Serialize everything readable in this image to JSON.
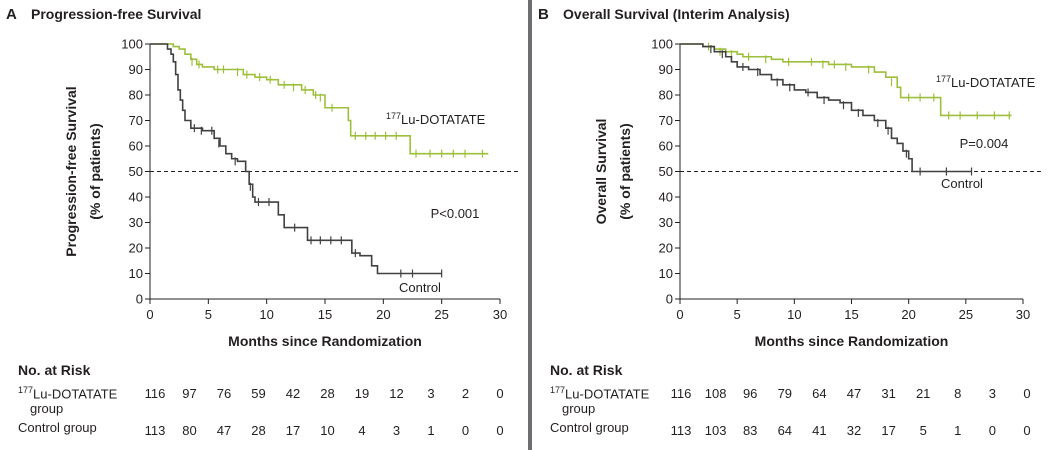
{
  "chart_data": [
    {
      "type": "line",
      "panel_letter": "A",
      "title": "Progression-free Survival",
      "ylabel_line1": "Progression-free Survival",
      "ylabel_line2": "(% of patients)",
      "xlabel": "Months since Randomization",
      "xlim": [
        0,
        30
      ],
      "ylim": [
        0,
        100
      ],
      "xticks": [
        0,
        5,
        10,
        15,
        20,
        25,
        30
      ],
      "yticks": [
        0,
        10,
        20,
        30,
        40,
        50,
        60,
        70,
        80,
        90,
        100
      ],
      "reference_line_y": 50,
      "pvalue": "P<0.001",
      "colors": {
        "treatment": "#9dbf3b",
        "control": "#414042",
        "reference": "#231f20"
      },
      "series": [
        {
          "name_sup": "177",
          "name": "Lu-DOTATATE",
          "points": [
            [
              0,
              100
            ],
            [
              1.8,
              100
            ],
            [
              2,
              99
            ],
            [
              2.5,
              98
            ],
            [
              3,
              96
            ],
            [
              3.5,
              94
            ],
            [
              4,
              92
            ],
            [
              4.5,
              91
            ],
            [
              5.5,
              90
            ],
            [
              7,
              90
            ],
            [
              8,
              88
            ],
            [
              9,
              87
            ],
            [
              10,
              86
            ],
            [
              11,
              84
            ],
            [
              12,
              84
            ],
            [
              13,
              82
            ],
            [
              14,
              80
            ],
            [
              14.5,
              80
            ],
            [
              15,
              75
            ],
            [
              16,
              75
            ],
            [
              17,
              70
            ],
            [
              17.2,
              64
            ],
            [
              22,
              64
            ],
            [
              22.3,
              57
            ],
            [
              29,
              57
            ]
          ],
          "censored": [
            [
              3.6,
              93
            ],
            [
              4.2,
              92
            ],
            [
              5.8,
              90
            ],
            [
              6.3,
              90
            ],
            [
              7.5,
              89
            ],
            [
              8.3,
              88
            ],
            [
              9.4,
              87
            ],
            [
              10.3,
              86
            ],
            [
              11.5,
              84
            ],
            [
              12.3,
              83
            ],
            [
              13.3,
              82
            ],
            [
              14.2,
              80
            ],
            [
              14.6,
              79
            ],
            [
              15.6,
              75
            ],
            [
              17.6,
              64
            ],
            [
              18.5,
              64
            ],
            [
              19.3,
              64
            ],
            [
              20.2,
              64
            ],
            [
              21.1,
              64
            ],
            [
              22.8,
              57
            ],
            [
              24,
              57
            ],
            [
              25,
              57
            ],
            [
              26,
              57
            ],
            [
              27,
              57
            ],
            [
              28.5,
              57
            ]
          ]
        },
        {
          "name": "Control",
          "points": [
            [
              0,
              100
            ],
            [
              1.2,
              100
            ],
            [
              1.5,
              98
            ],
            [
              1.8,
              96
            ],
            [
              2,
              93
            ],
            [
              2.2,
              88
            ],
            [
              2.4,
              82
            ],
            [
              2.6,
              78
            ],
            [
              2.8,
              74
            ],
            [
              3,
              70
            ],
            [
              3.5,
              67
            ],
            [
              4,
              67
            ],
            [
              4.5,
              66
            ],
            [
              5,
              66
            ],
            [
              5.5,
              63
            ],
            [
              6,
              60
            ],
            [
              6.5,
              57
            ],
            [
              7,
              55
            ],
            [
              7.5,
              54
            ],
            [
              8,
              54
            ],
            [
              8.2,
              50
            ],
            [
              8.5,
              45
            ],
            [
              8.8,
              40
            ],
            [
              9,
              38
            ],
            [
              10.5,
              38
            ],
            [
              11,
              33
            ],
            [
              11.5,
              28
            ],
            [
              13,
              28
            ],
            [
              13.5,
              23
            ],
            [
              17,
              23
            ],
            [
              17.3,
              18
            ],
            [
              18,
              17
            ],
            [
              19,
              13
            ],
            [
              19.5,
              10
            ],
            [
              25,
              10
            ]
          ],
          "censored": [
            [
              3.8,
              67
            ],
            [
              4.4,
              66
            ],
            [
              5.3,
              66
            ],
            [
              5.9,
              61
            ],
            [
              7.3,
              54
            ],
            [
              8.6,
              44
            ],
            [
              9.3,
              38
            ],
            [
              10.2,
              38
            ],
            [
              12.4,
              28
            ],
            [
              13.8,
              23
            ],
            [
              14.6,
              23
            ],
            [
              15.5,
              23
            ],
            [
              16.4,
              23
            ],
            [
              17.6,
              18
            ],
            [
              21.5,
              10
            ],
            [
              22.5,
              10
            ],
            [
              25,
              10
            ]
          ]
        }
      ],
      "risk_table": {
        "title": "No. at Risk",
        "times": [
          0,
          3,
          6,
          9,
          12,
          15,
          18,
          21,
          24,
          27,
          30
        ],
        "rows": [
          {
            "label_sup": "177",
            "label": "Lu-DOTATATE",
            "label_line2": "group",
            "values": [
              116,
              97,
              76,
              59,
              42,
              28,
              19,
              12,
              3,
              2,
              0
            ]
          },
          {
            "label": "Control group",
            "values": [
              113,
              80,
              47,
              28,
              17,
              10,
              4,
              3,
              1,
              0,
              0
            ]
          }
        ]
      }
    },
    {
      "type": "line",
      "panel_letter": "B",
      "title": "Overall Survival (Interim Analysis)",
      "ylabel_line1": "Overall Survival",
      "ylabel_line2": "(% of patients)",
      "xlabel": "Months since Randomization",
      "xlim": [
        0,
        30
      ],
      "ylim": [
        0,
        100
      ],
      "xticks": [
        0,
        5,
        10,
        15,
        20,
        25,
        30
      ],
      "yticks": [
        0,
        10,
        20,
        30,
        40,
        50,
        60,
        70,
        80,
        90,
        100
      ],
      "reference_line_y": 50,
      "pvalue": "P=0.004",
      "colors": {
        "treatment": "#9dbf3b",
        "control": "#414042",
        "reference": "#231f20"
      },
      "series": [
        {
          "name_sup": "177",
          "name": "Lu-DOTATATE",
          "points": [
            [
              0,
              100
            ],
            [
              1,
              100
            ],
            [
              2,
              99
            ],
            [
              3,
              98
            ],
            [
              4,
              97
            ],
            [
              5,
              96
            ],
            [
              5.5,
              95
            ],
            [
              7,
              95
            ],
            [
              8,
              94
            ],
            [
              9,
              93
            ],
            [
              10,
              93
            ],
            [
              11,
              93
            ],
            [
              13,
              92
            ],
            [
              15,
              91
            ],
            [
              16,
              91
            ],
            [
              17,
              89
            ],
            [
              18,
              87
            ],
            [
              19,
              83
            ],
            [
              19.3,
              79
            ],
            [
              22,
              79
            ],
            [
              22.8,
              72
            ],
            [
              29,
              72
            ]
          ],
          "censored": [
            [
              2.5,
              99
            ],
            [
              3.5,
              97
            ],
            [
              4.5,
              96
            ],
            [
              6,
              95
            ],
            [
              7.5,
              94
            ],
            [
              9.5,
              93
            ],
            [
              11.5,
              93
            ],
            [
              12.5,
              92
            ],
            [
              13.5,
              92
            ],
            [
              14.5,
              91
            ],
            [
              16.5,
              90
            ],
            [
              18.5,
              85
            ],
            [
              20,
              79
            ],
            [
              21,
              79
            ],
            [
              22.2,
              79
            ],
            [
              23.5,
              72
            ],
            [
              24.5,
              72
            ],
            [
              26,
              72
            ],
            [
              27.5,
              72
            ],
            [
              28.8,
              72
            ]
          ]
        },
        {
          "name": "Control",
          "points": [
            [
              0,
              100
            ],
            [
              1,
              100
            ],
            [
              2,
              99
            ],
            [
              3,
              97
            ],
            [
              4,
              95
            ],
            [
              4.5,
              93
            ],
            [
              5,
              91
            ],
            [
              6,
              90
            ],
            [
              7,
              88
            ],
            [
              8,
              86
            ],
            [
              9,
              84
            ],
            [
              10,
              82
            ],
            [
              11,
              81
            ],
            [
              12,
              79
            ],
            [
              13,
              78
            ],
            [
              14,
              77
            ],
            [
              15,
              74
            ],
            [
              16,
              72
            ],
            [
              17,
              70
            ],
            [
              18,
              67
            ],
            [
              18.5,
              63
            ],
            [
              19,
              61
            ],
            [
              19.5,
              58
            ],
            [
              20,
              55
            ],
            [
              20.3,
              50
            ],
            [
              25.5,
              50
            ]
          ],
          "censored": [
            [
              2.7,
              98
            ],
            [
              3.7,
              96
            ],
            [
              5.5,
              91
            ],
            [
              6.8,
              89
            ],
            [
              8.5,
              85
            ],
            [
              9.6,
              83
            ],
            [
              11.2,
              81
            ],
            [
              12.6,
              78
            ],
            [
              14.3,
              76
            ],
            [
              15.6,
              73
            ],
            [
              17.3,
              69
            ],
            [
              18.2,
              66
            ],
            [
              19.8,
              57
            ],
            [
              21,
              50
            ],
            [
              23.3,
              50
            ],
            [
              25.5,
              50
            ]
          ]
        }
      ],
      "risk_table": {
        "title": "No. at Risk",
        "times": [
          0,
          3,
          6,
          9,
          12,
          15,
          18,
          21,
          24,
          27,
          30
        ],
        "rows": [
          {
            "label_sup": "177",
            "label": "Lu-DOTATATE",
            "label_line2": "group",
            "values": [
              116,
              108,
              96,
              79,
              64,
              47,
              31,
              21,
              8,
              3,
              0
            ]
          },
          {
            "label": "Control group",
            "values": [
              113,
              103,
              83,
              64,
              41,
              32,
              17,
              5,
              1,
              0,
              0
            ]
          }
        ]
      }
    }
  ]
}
